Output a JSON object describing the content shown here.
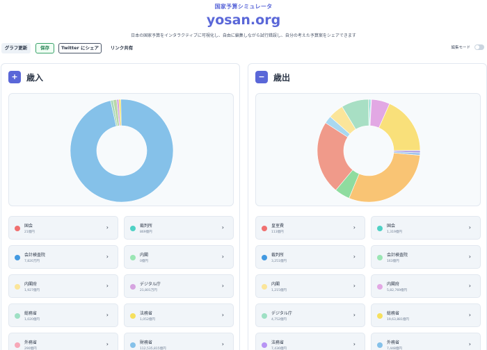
{
  "header": {
    "kicker": "国家予算シミュレータ",
    "title": "yosan.org",
    "tagline": "日本の国家予算をインタラクティブに可視化し、自由に編集しながら試行錯誤し、自分の考えた予算案をシェアできます"
  },
  "toolbar": {
    "update_label": "グラフ更新",
    "save_label": "保存",
    "twitter_label": "Twitter にシェア",
    "share_label": "リンク共有",
    "edit_mode_label": "編集モード",
    "edit_mode_on": false
  },
  "revenue": {
    "icon": "plus-icon",
    "icon_glyph": "+",
    "title": "歳入",
    "chart_data": {
      "type": "pie",
      "donut": true,
      "slices": [
        {
          "label": "国会",
          "share": 0.0,
          "color": "#f07070"
        },
        {
          "label": "裁判所",
          "share": 0.0,
          "color": "#4fd1c5"
        },
        {
          "label": "会計検査院",
          "share": 0.0,
          "color": "#4299e1"
        },
        {
          "label": "内閣",
          "share": 0.0,
          "color": "#9ae6b4"
        },
        {
          "label": "内閣府",
          "share": 0.0,
          "color": "#fbe59a"
        },
        {
          "label": "デジタル庁",
          "share": 0.007,
          "color": "#d6a4e0"
        },
        {
          "label": "総務省",
          "share": 0.0,
          "color": "#9ee0c4"
        },
        {
          "label": "法務省",
          "share": 0.006,
          "color": "#f6e05e"
        },
        {
          "label": "外務省",
          "share": 0.0,
          "color": "#f7a8b8"
        },
        {
          "label": "財務省",
          "share": 0.968,
          "color": "#85c1e9"
        },
        {
          "label": "other-1",
          "share": 0.008,
          "color": "#a8d8b9"
        },
        {
          "label": "other-2",
          "share": 0.011,
          "color": "#b9d7a8"
        }
      ]
    },
    "items": [
      {
        "name": "国会",
        "amount": "21億円",
        "color": "#f07070"
      },
      {
        "name": "裁判所",
        "amount": "869億円",
        "color": "#4fd1c5"
      },
      {
        "name": "会計検査院",
        "amount": "7,820万円",
        "color": "#4299e1"
      },
      {
        "name": "内閣",
        "amount": "0億円",
        "color": "#9ae6b4"
      },
      {
        "name": "内閣府",
        "amount": "1,927億円",
        "color": "#fbe59a"
      },
      {
        "name": "デジタル庁",
        "amount": "21,801万円",
        "color": "#d6a4e0"
      },
      {
        "name": "総務省",
        "amount": "1,020億円",
        "color": "#9ee0c4"
      },
      {
        "name": "法務省",
        "amount": "1,052億円",
        "color": "#f6e05e"
      },
      {
        "name": "外務省",
        "amount": "290億円",
        "color": "#f7a8b8"
      },
      {
        "name": "財務省",
        "amount": "112,535,815億円",
        "color": "#85c1e9"
      }
    ]
  },
  "expenditure": {
    "icon": "minus-icon",
    "icon_glyph": "−",
    "title": "歳出",
    "chart_data": {
      "type": "pie",
      "donut": true,
      "slices": [
        {
          "label": "皇室費",
          "share": 0.002,
          "color": "#f07070"
        },
        {
          "label": "国会",
          "share": 0.004,
          "color": "#4fd1c5"
        },
        {
          "label": "裁判所",
          "share": 0.002,
          "color": "#4299e1"
        },
        {
          "label": "会計検査院",
          "share": 0.001,
          "color": "#9ae6b4"
        },
        {
          "label": "内閣",
          "share": 0.06,
          "color": "#e2a8e4"
        },
        {
          "label": "内閣府",
          "share": 0.19,
          "color": "#f9e07a"
        },
        {
          "label": "デジタル庁",
          "share": 0.008,
          "color": "#b4a8e8"
        },
        {
          "label": "総務省",
          "share": 0.008,
          "color": "#a0c4e8"
        },
        {
          "label": "法務省",
          "share": 0.31,
          "color": "#f9c474"
        },
        {
          "label": "外務省",
          "share": 0.05,
          "color": "#8fdc9f"
        },
        {
          "label": "財務省",
          "share": 0.24,
          "color": "#f09a8a"
        },
        {
          "label": "other-1",
          "share": 0.025,
          "color": "#a8d8f0"
        },
        {
          "label": "other-2",
          "share": 0.05,
          "color": "#fbe59a"
        },
        {
          "label": "other-3",
          "share": 0.09,
          "color": "#a8dfc4"
        }
      ]
    },
    "items": [
      {
        "name": "皇室費",
        "amount": "113億円",
        "color": "#f07070"
      },
      {
        "name": "国会",
        "amount": "1,319億円",
        "color": "#4fd1c5"
      },
      {
        "name": "裁判所",
        "amount": "3,251億円",
        "color": "#4299e1"
      },
      {
        "name": "会計検査院",
        "amount": "163億円",
        "color": "#9ae6b4"
      },
      {
        "name": "内閣",
        "amount": "1,215億円",
        "color": "#fbe59a"
      },
      {
        "name": "内閣府",
        "amount": "5,82,769億円",
        "color": "#e2a8e4"
      },
      {
        "name": "デジタル庁",
        "amount": "4,752億円",
        "color": "#9ee0c4"
      },
      {
        "name": "総務省",
        "amount": "19,63,881億円",
        "color": "#f6e05e"
      },
      {
        "name": "法務省",
        "amount": "7,436億円",
        "color": "#b794f4"
      },
      {
        "name": "外務省",
        "amount": "7,448億円",
        "color": "#85c1e9"
      }
    ]
  }
}
